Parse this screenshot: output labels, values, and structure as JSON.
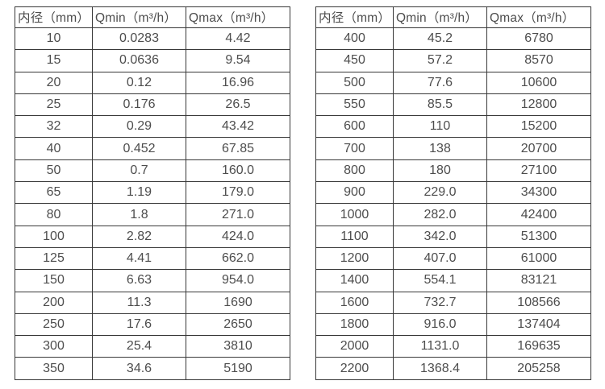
{
  "chart_data": [
    {
      "type": "table",
      "name": "flow-rate-table-small-diameters",
      "columns": [
        "内径（mm）",
        "Qmin（m³/h）",
        "Qmax（m³/h）"
      ],
      "rows": [
        [
          "10",
          "0.0283",
          "4.42"
        ],
        [
          "15",
          "0.0636",
          "9.54"
        ],
        [
          "20",
          "0.12",
          "16.96"
        ],
        [
          "25",
          "0.176",
          "26.5"
        ],
        [
          "32",
          "0.29",
          "43.42"
        ],
        [
          "40",
          "0.452",
          "67.85"
        ],
        [
          "50",
          "0.7",
          "160.0"
        ],
        [
          "65",
          "1.19",
          "179.0"
        ],
        [
          "80",
          "1.8",
          "271.0"
        ],
        [
          "100",
          "2.82",
          "424.0"
        ],
        [
          "125",
          "4.41",
          "662.0"
        ],
        [
          "150",
          "6.63",
          "954.0"
        ],
        [
          "200",
          "11.3",
          "1690"
        ],
        [
          "250",
          "17.6",
          "2650"
        ],
        [
          "300",
          "25.4",
          "3810"
        ],
        [
          "350",
          "34.6",
          "5190"
        ]
      ]
    },
    {
      "type": "table",
      "name": "flow-rate-table-large-diameters",
      "columns": [
        "内径（mm）",
        "Qmin（m³/h）",
        "Qmax（m³/h）"
      ],
      "rows": [
        [
          "400",
          "45.2",
          "6780"
        ],
        [
          "450",
          "57.2",
          "8570"
        ],
        [
          "500",
          "77.6",
          "10600"
        ],
        [
          "550",
          "85.5",
          "12800"
        ],
        [
          "600",
          "110",
          "15200"
        ],
        [
          "700",
          "138",
          "20700"
        ],
        [
          "800",
          "180",
          "27100"
        ],
        [
          "900",
          "229.0",
          "34300"
        ],
        [
          "1000",
          "282.0",
          "42400"
        ],
        [
          "1100",
          "342.0",
          "51300"
        ],
        [
          "1200",
          "407.0",
          "61000"
        ],
        [
          "1400",
          "554.1",
          "83121"
        ],
        [
          "1600",
          "732.7",
          "108566"
        ],
        [
          "1800",
          "916.0",
          "137404"
        ],
        [
          "2000",
          "1131.0",
          "169635"
        ],
        [
          "2200",
          "1368.4",
          "205258"
        ]
      ]
    }
  ],
  "colors": {
    "text": "#4d4d4d",
    "border": "#383838",
    "background": "#ffffff"
  }
}
